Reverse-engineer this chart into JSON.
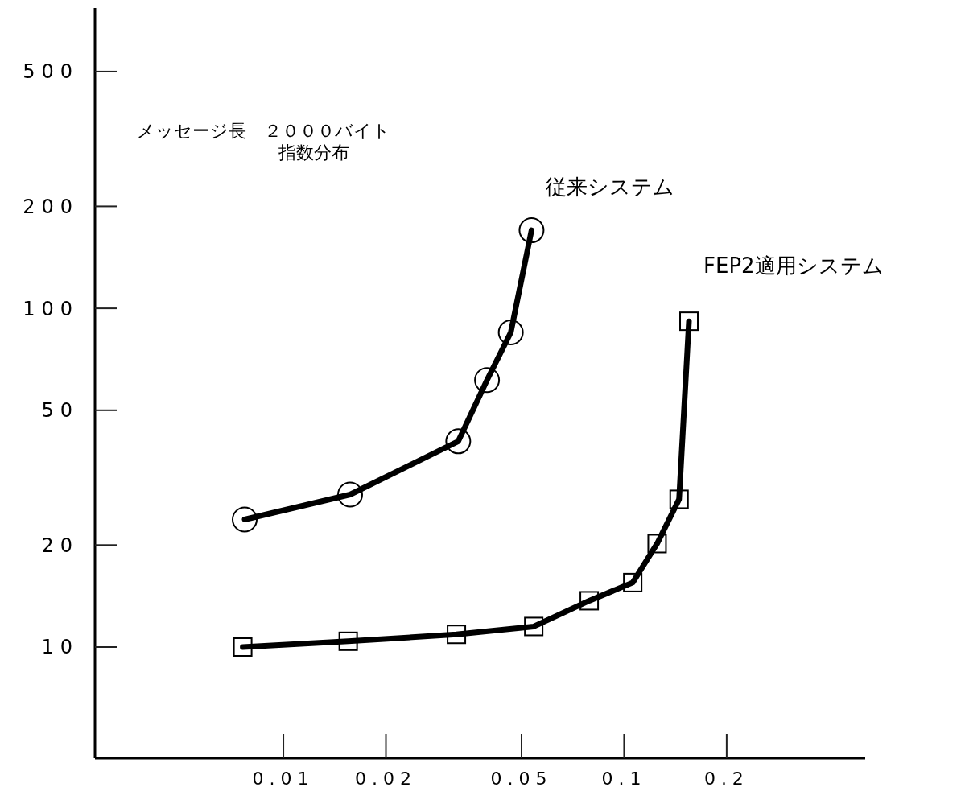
{
  "chart_data": {
    "type": "line",
    "log": "xy",
    "xlim": [
      0.0028,
      0.51
    ],
    "ylim": [
      4.7,
      770
    ],
    "xticks": [
      0.01,
      0.02,
      0.05,
      0.1,
      0.2
    ],
    "yticks": [
      10,
      20,
      50,
      100,
      200,
      500
    ],
    "grid": false,
    "annotations": [
      "メッセージ長　２０００バイト",
      "指数分布"
    ],
    "series": [
      {
        "name": "従来システム",
        "color": "#000000",
        "marker": "circle",
        "x": [
          0.0077,
          0.0157,
          0.0326,
          0.0396,
          0.0465,
          0.0535
        ],
        "values": [
          23.8,
          28.2,
          40.5,
          61.4,
          84.9,
          170
        ]
      },
      {
        "name": "FEP2適用システム",
        "color": "#000000",
        "marker": "square",
        "x": [
          0.0076,
          0.0155,
          0.0322,
          0.0543,
          0.079,
          0.106,
          0.125,
          0.145,
          0.155
        ],
        "values": [
          10,
          10.4,
          10.9,
          11.5,
          13.7,
          15.5,
          20.2,
          27.3,
          91.6
        ]
      }
    ]
  }
}
